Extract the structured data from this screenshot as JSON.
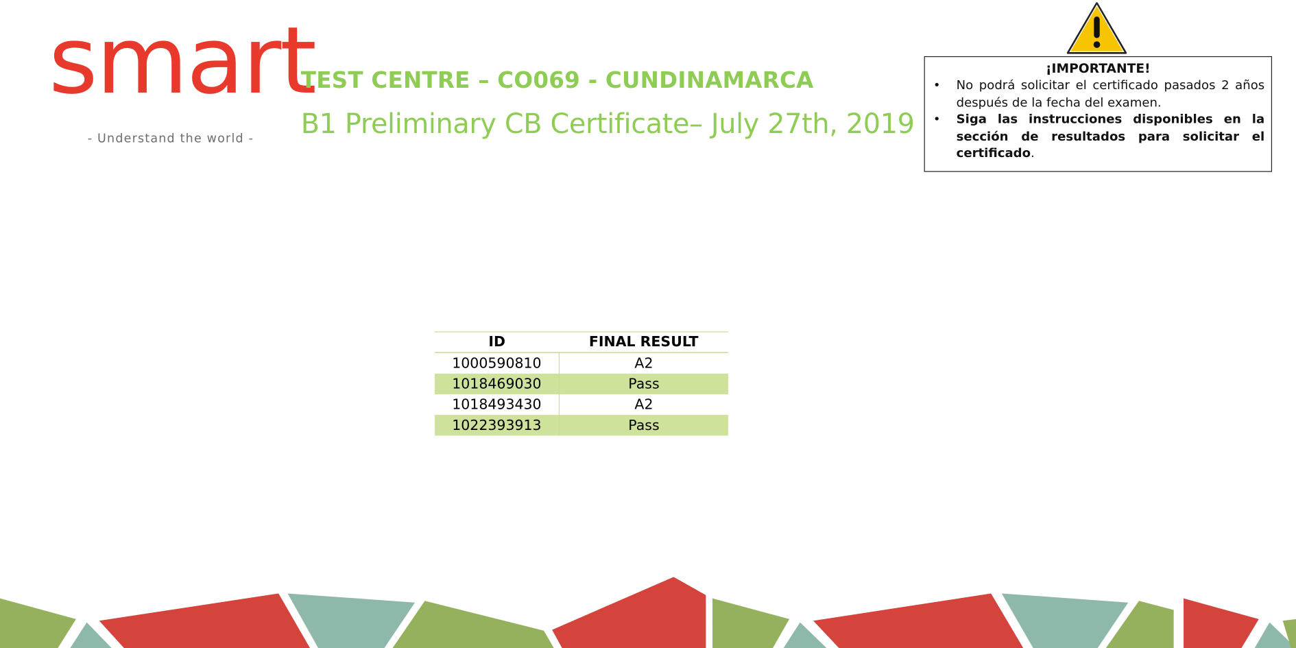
{
  "logo": {
    "wordmark": "smart",
    "tagline": "- Understand the world -",
    "color": "#e8392d"
  },
  "header": {
    "title": "TEST CENTRE – CO069 - CUNDINAMARCA",
    "subtitle": "B1 Preliminary CB Certificate– July 27th, 2019",
    "color": "#8fcc55"
  },
  "notice": {
    "icon": "warning-triangle-icon",
    "heading": "¡IMPORTANTE!",
    "items": [
      {
        "text": "No podrá solicitar el certificado pasados 2 años después de la fecha del examen.",
        "bold": false
      },
      {
        "text": "Siga las instrucciones disponibles en la sección de resultados para solicitar el certificado",
        "suffix": ".",
        "bold": true
      }
    ]
  },
  "results": {
    "columns": [
      "ID",
      "FINAL RESULT"
    ],
    "rows": [
      {
        "id": "1000590810",
        "result": "A2"
      },
      {
        "id": "1018469030",
        "result": "Pass"
      },
      {
        "id": "1018493430",
        "result": "A2"
      },
      {
        "id": "1022393913",
        "result": "Pass"
      }
    ],
    "stripe_color": "#cfe29c"
  },
  "footer_colors": {
    "green": "#95b15d",
    "teal": "#8db8aa",
    "red": "#d4443d"
  }
}
